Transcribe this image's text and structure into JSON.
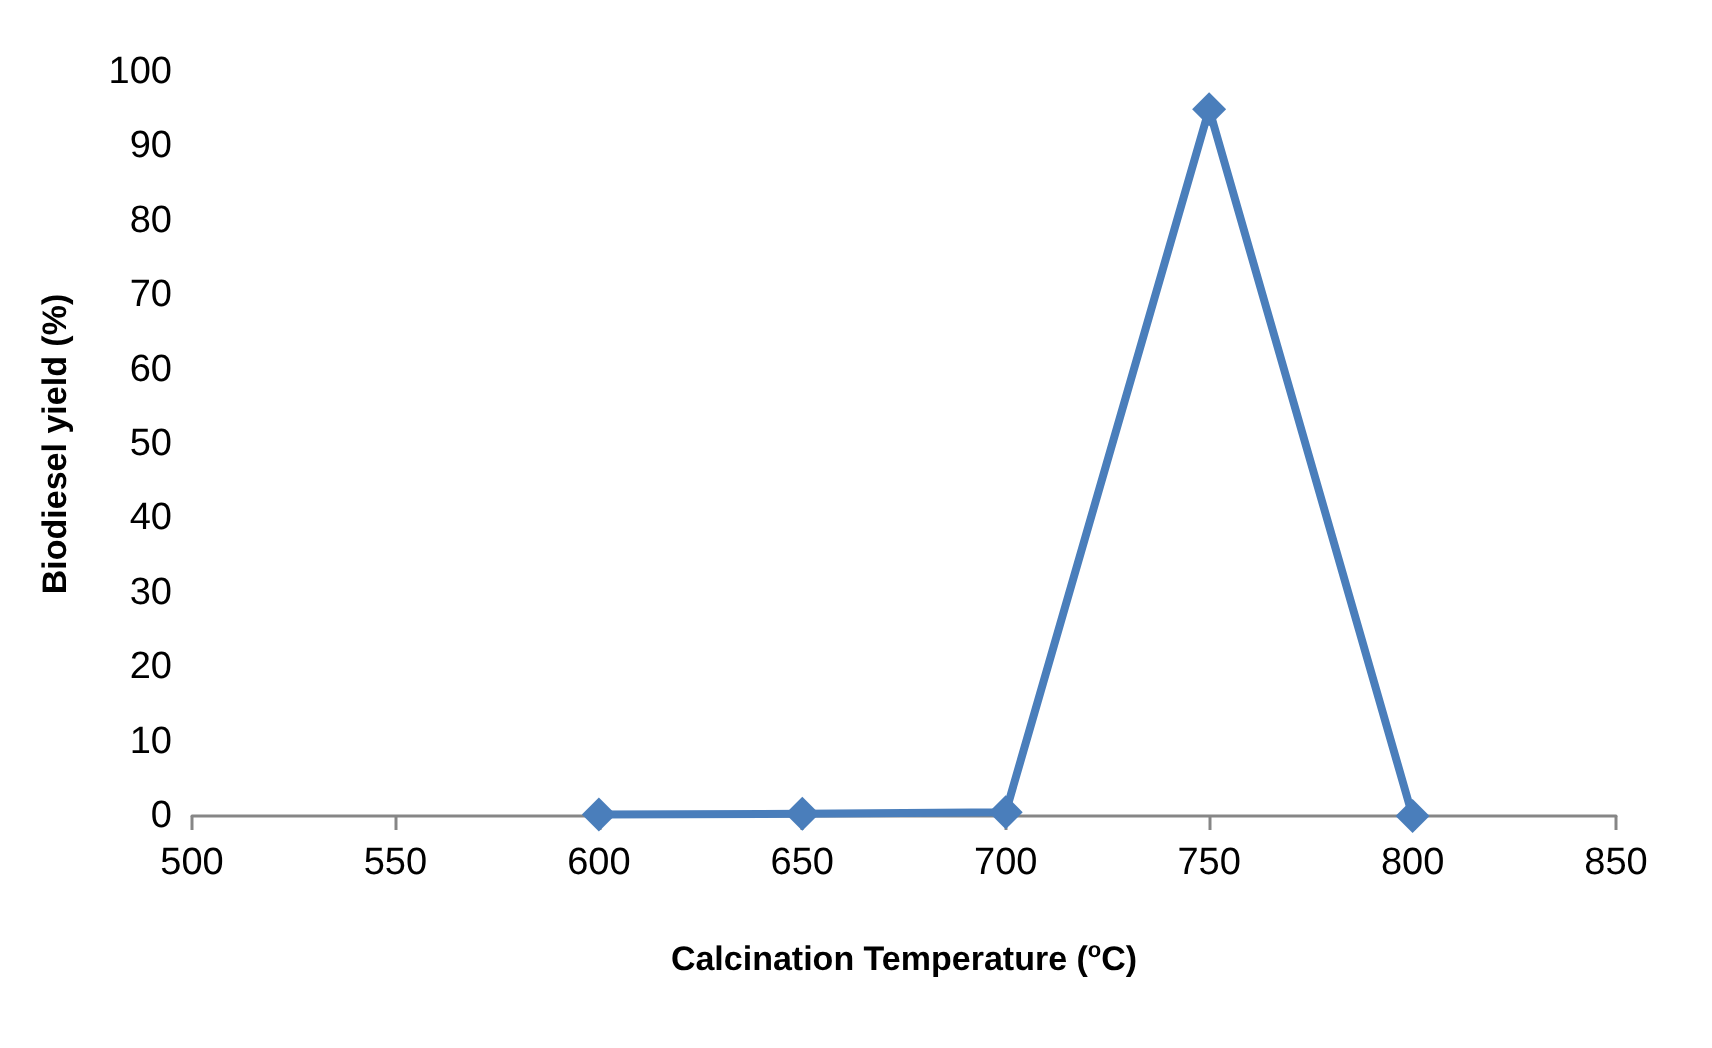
{
  "chart_data": {
    "type": "line",
    "xlabel": "Calcination Temperature ($^{o}$C)",
    "ylabel": "Biodiesel yield (%)",
    "x": [
      600,
      650,
      700,
      750,
      800
    ],
    "series": [
      {
        "color": "#4a7ebb",
        "values": [
          0.2,
          0.3,
          0.5,
          95,
          0
        ]
      }
    ],
    "xlim": [
      500,
      850
    ],
    "xticks": [
      500,
      550,
      600,
      650,
      700,
      750,
      800,
      850
    ],
    "ylim": [
      0,
      100
    ],
    "yticks": [
      0,
      10,
      20,
      30,
      40,
      50,
      60,
      70,
      80,
      90,
      100
    ],
    "grid": false,
    "marker": "diamond",
    "line_style": "solid"
  }
}
